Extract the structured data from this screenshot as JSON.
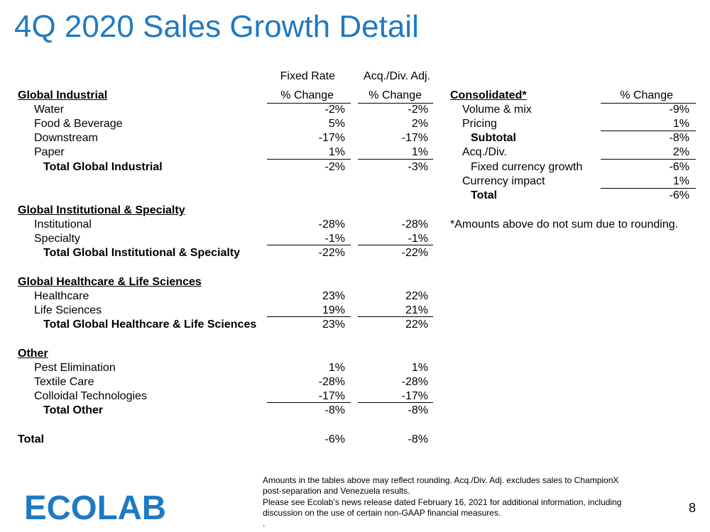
{
  "title": "4Q 2020 Sales Growth Detail",
  "headers": {
    "fixed_rate_top": "Fixed Rate",
    "acq_top": "Acq./Div. Adj.",
    "pct_change": "% Change"
  },
  "sections": {
    "industrial": {
      "heading": "Global Industrial",
      "rows": [
        {
          "label": "Water",
          "fixed": "-2%",
          "acq": "-2%"
        },
        {
          "label": "Food & Beverage",
          "fixed": "5%",
          "acq": "2%"
        },
        {
          "label": "Downstream",
          "fixed": "-17%",
          "acq": "-17%"
        },
        {
          "label": "Paper",
          "fixed": "1%",
          "acq": "1%"
        }
      ],
      "total": {
        "label": "Total Global Industrial",
        "fixed": "-2%",
        "acq": "-3%"
      }
    },
    "institutional": {
      "heading": "Global Institutional & Specialty",
      "rows": [
        {
          "label": "Institutional",
          "fixed": "-28%",
          "acq": "-28%"
        },
        {
          "label": "Specialty",
          "fixed": "-1%",
          "acq": "-1%"
        }
      ],
      "total": {
        "label": "Total Global Institutional & Specialty",
        "fixed": "-22%",
        "acq": "-22%"
      }
    },
    "healthcare": {
      "heading": "Global Healthcare & Life Sciences",
      "rows": [
        {
          "label": "Healthcare",
          "fixed": "23%",
          "acq": "22%"
        },
        {
          "label": "Life Sciences",
          "fixed": "19%",
          "acq": "21%"
        }
      ],
      "total": {
        "label": "Total Global Healthcare & Life Sciences",
        "fixed": "23%",
        "acq": "22%"
      }
    },
    "other": {
      "heading": "Other",
      "rows": [
        {
          "label": "Pest Elimination",
          "fixed": "1%",
          "acq": "1%"
        },
        {
          "label": "Textile Care",
          "fixed": "-28%",
          "acq": "-28%"
        },
        {
          "label": "Colloidal Technologies",
          "fixed": "-17%",
          "acq": "-17%"
        }
      ],
      "total": {
        "label": "Total Other",
        "fixed": "-8%",
        "acq": "-8%"
      }
    }
  },
  "grand_total": {
    "label": "Total",
    "fixed": "-6%",
    "acq": "-8%"
  },
  "consolidated": {
    "heading": "Consolidated*",
    "column": "% Change",
    "rows": [
      {
        "label": "Volume & mix",
        "value": "-9%"
      },
      {
        "label": "Pricing",
        "value": "1%"
      },
      {
        "label": "Subtotal",
        "value": "-8%"
      },
      {
        "label": "Acq./Div.",
        "value": "2%"
      },
      {
        "label": "Fixed currency growth",
        "value": "-6%"
      },
      {
        "label": "Currency impact",
        "value": "1%"
      },
      {
        "label": "Total",
        "value": "-6%"
      }
    ],
    "note": "*Amounts above do not sum due to rounding."
  },
  "footnotes": [
    "Amounts in the tables above may reflect rounding.  Acq./Div. Adj. excludes sales to ChampionX",
    "post-separation and Venezuela results.",
    "Please see Ecolab’s news release dated February 16, 2021 for additional information, including",
    "discussion on the use of certain non-GAAP financial measures.",
    "."
  ],
  "logo_text": "ECOLAB",
  "brand_color": "#1f7ac2",
  "page_number": "8"
}
